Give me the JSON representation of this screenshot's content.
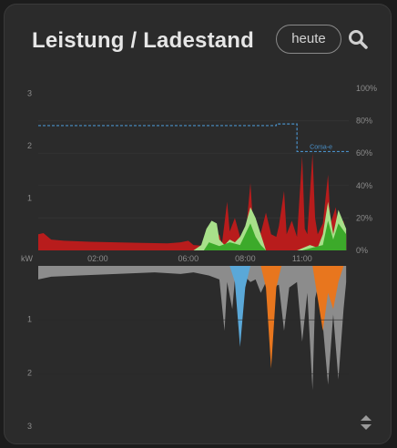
{
  "card": {
    "title": "Leistung / Ladestand"
  },
  "date_button": {
    "label": "heute"
  },
  "icons": {
    "search": "search-icon",
    "sort": "sort-updown-icon"
  },
  "colors": {
    "grid_import": "#b81c1c",
    "pv_light": "#a8e08a",
    "pv_green": "#3caa2a",
    "consumption_gray": "#8c8c8c",
    "car_blue": "#5aa8d8",
    "car_orange": "#e8761e",
    "soc_line": "#4a90c8"
  },
  "chart_data": {
    "type": "area",
    "x_ticks": [
      "02:00",
      "06:00",
      "08:00",
      "11:00"
    ],
    "y_unit_label": "kW",
    "top": {
      "y_ticks": [
        "3",
        "2",
        "1"
      ],
      "ylim": [
        0,
        3
      ],
      "y2_ticks": [
        "100%",
        "80%",
        "60%",
        "40%",
        "20%",
        "0%"
      ],
      "y2lim": [
        0,
        100
      ],
      "soc_series_label": "Corsa-e",
      "soc": [
        [
          0,
          77
        ],
        [
          0.92,
          77
        ],
        [
          0.92,
          78
        ],
        [
          1.0,
          78
        ],
        [
          1.0,
          61
        ],
        [
          1.25,
          61
        ]
      ],
      "grid": [
        [
          0,
          0.3
        ],
        [
          0.02,
          0.32
        ],
        [
          0.05,
          0.2
        ],
        [
          0.1,
          0.18
        ],
        [
          0.2,
          0.16
        ],
        [
          0.3,
          0.15
        ],
        [
          0.4,
          0.14
        ],
        [
          0.5,
          0.13
        ],
        [
          0.55,
          0.15
        ],
        [
          0.58,
          0.18
        ],
        [
          0.6,
          0.1
        ],
        [
          0.65,
          0.08
        ],
        [
          0.68,
          0.15
        ],
        [
          0.7,
          0.3
        ],
        [
          0.71,
          0.12
        ],
        [
          0.73,
          0.9
        ],
        [
          0.74,
          0.35
        ],
        [
          0.76,
          0.6
        ],
        [
          0.78,
          0.25
        ],
        [
          0.8,
          0.2
        ],
        [
          0.82,
          1.25
        ],
        [
          0.83,
          0.5
        ],
        [
          0.84,
          0.28
        ],
        [
          0.86,
          0.32
        ],
        [
          0.88,
          0.7
        ],
        [
          0.9,
          0.3
        ],
        [
          0.92,
          0.25
        ],
        [
          0.93,
          0.45
        ],
        [
          0.95,
          1.1
        ],
        [
          0.96,
          0.3
        ],
        [
          0.98,
          0.55
        ],
        [
          1.0,
          0.25
        ],
        [
          1.02,
          1.75
        ],
        [
          1.03,
          0.4
        ],
        [
          1.04,
          0.3
        ],
        [
          1.06,
          1.8
        ],
        [
          1.07,
          0.6
        ],
        [
          1.08,
          0.3
        ],
        [
          1.1,
          0.5
        ],
        [
          1.12,
          1.4
        ],
        [
          1.13,
          0.5
        ],
        [
          1.15,
          0.8
        ],
        [
          1.16,
          0.3
        ],
        [
          1.18,
          0.55
        ],
        [
          1.19,
          0.3
        ]
      ],
      "pv_light": [
        [
          0.6,
          0
        ],
        [
          0.63,
          0.1
        ],
        [
          0.65,
          0.4
        ],
        [
          0.67,
          0.55
        ],
        [
          0.69,
          0.5
        ],
        [
          0.7,
          0.2
        ],
        [
          0.72,
          0.1
        ],
        [
          0.74,
          0.2
        ],
        [
          0.76,
          0.15
        ],
        [
          0.78,
          0.25
        ],
        [
          0.8,
          0.45
        ],
        [
          0.82,
          0.8
        ],
        [
          0.84,
          0.6
        ],
        [
          0.86,
          0.3
        ],
        [
          0.88,
          0
        ],
        [
          1.0,
          0
        ],
        [
          1.05,
          0.1
        ],
        [
          1.08,
          0.05
        ],
        [
          1.1,
          0.3
        ],
        [
          1.12,
          0.9
        ],
        [
          1.14,
          0.3
        ],
        [
          1.16,
          0.75
        ],
        [
          1.19,
          0.4
        ]
      ],
      "pv_green": [
        [
          0.64,
          0
        ],
        [
          0.66,
          0.15
        ],
        [
          0.7,
          0.08
        ],
        [
          0.74,
          0.15
        ],
        [
          0.78,
          0.1
        ],
        [
          0.8,
          0.3
        ],
        [
          0.82,
          0.5
        ],
        [
          0.84,
          0.25
        ],
        [
          0.86,
          0.1
        ],
        [
          0.88,
          0
        ],
        [
          1.02,
          0
        ],
        [
          1.06,
          0.05
        ],
        [
          1.1,
          0.1
        ],
        [
          1.12,
          0.55
        ],
        [
          1.14,
          0.2
        ],
        [
          1.16,
          0.5
        ],
        [
          1.19,
          0.3
        ]
      ]
    },
    "bottom": {
      "y_ticks": [
        "1",
        "2",
        "3"
      ],
      "ylim": [
        0,
        3
      ],
      "consumption": [
        [
          0,
          0.25
        ],
        [
          0.05,
          0.2
        ],
        [
          0.15,
          0.18
        ],
        [
          0.3,
          0.15
        ],
        [
          0.45,
          0.12
        ],
        [
          0.55,
          0.15
        ],
        [
          0.6,
          0.12
        ],
        [
          0.66,
          0.18
        ],
        [
          0.7,
          0.25
        ],
        [
          0.72,
          1.2
        ],
        [
          0.73,
          0.3
        ],
        [
          0.75,
          0.8
        ],
        [
          0.76,
          0.25
        ],
        [
          0.78,
          0.6
        ],
        [
          0.8,
          0.2
        ],
        [
          0.82,
          0.3
        ],
        [
          0.84,
          0.25
        ],
        [
          0.86,
          0.5
        ],
        [
          0.88,
          0.3
        ],
        [
          0.9,
          0.4
        ],
        [
          0.93,
          0.35
        ],
        [
          0.95,
          1.2
        ],
        [
          0.97,
          0.4
        ],
        [
          1.0,
          0.3
        ],
        [
          1.02,
          1.4
        ],
        [
          1.04,
          0.5
        ],
        [
          1.06,
          2.3
        ],
        [
          1.07,
          0.6
        ],
        [
          1.08,
          0.4
        ],
        [
          1.1,
          1.1
        ],
        [
          1.12,
          2.2
        ],
        [
          1.14,
          0.9
        ],
        [
          1.16,
          2.1
        ],
        [
          1.18,
          0.8
        ],
        [
          1.19,
          0.3
        ]
      ],
      "car_blue": [
        [
          0.74,
          0
        ],
        [
          0.76,
          0.3
        ],
        [
          0.78,
          1.5
        ],
        [
          0.8,
          0.4
        ],
        [
          0.82,
          0
        ]
      ],
      "car_orange": [
        [
          0.86,
          0
        ],
        [
          0.88,
          0.4
        ],
        [
          0.9,
          1.9
        ],
        [
          0.92,
          0.4
        ],
        [
          0.94,
          0
        ],
        [
          1.06,
          0
        ],
        [
          1.08,
          0.6
        ],
        [
          1.1,
          1.2
        ],
        [
          1.12,
          0.5
        ],
        [
          1.14,
          0.8
        ],
        [
          1.16,
          0.3
        ],
        [
          1.18,
          0
        ]
      ]
    }
  }
}
